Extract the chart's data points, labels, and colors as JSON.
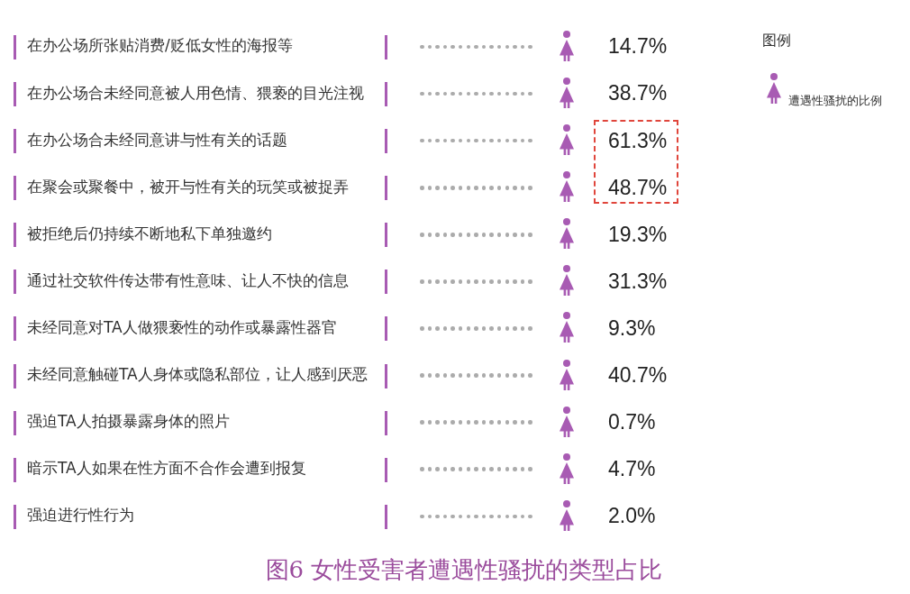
{
  "chart_data": {
    "type": "other",
    "title": "图6 女性受害者遭遇性骚扰的类型占比",
    "legend_title": "图例",
    "legend": "top right",
    "categories": [
      "在办公场所张贴消费/贬低女性的海报等",
      "在办公场合未经同意被人用色情、猥亵的目光注视",
      "在办公场合未经同意讲与性有关的话题",
      "在聚会或聚餐中，被开与性有关的玩笑或被捉弄",
      "被拒绝后仍持续不断地私下单独邀约",
      "通过社交软件传达带有性意味、让人不快的信息",
      "未经同意对TA人做猥亵性的动作或暴露性器官",
      "未经同意触碰TA人身体或隐私部位，让人感到厌恶",
      "强迫TA人拍摄暴露身体的照片",
      "暗示TA人如果在性方面不合作会遭到报复",
      "强迫进行性行为"
    ],
    "series": [
      {
        "name": "遭遇性骚扰的比例",
        "color": "#a85bb3",
        "values": [
          14.7,
          38.7,
          61.3,
          48.7,
          19.3,
          31.3,
          9.3,
          40.7,
          0.7,
          4.7,
          2.0
        ],
        "value_labels": [
          "14.7%",
          "38.7%",
          "61.3%",
          "48.7%",
          "19.3%",
          "31.3%",
          "9.3%",
          "40.7%",
          "0.7%",
          "4.7%",
          "2.0%"
        ]
      }
    ]
  }
}
